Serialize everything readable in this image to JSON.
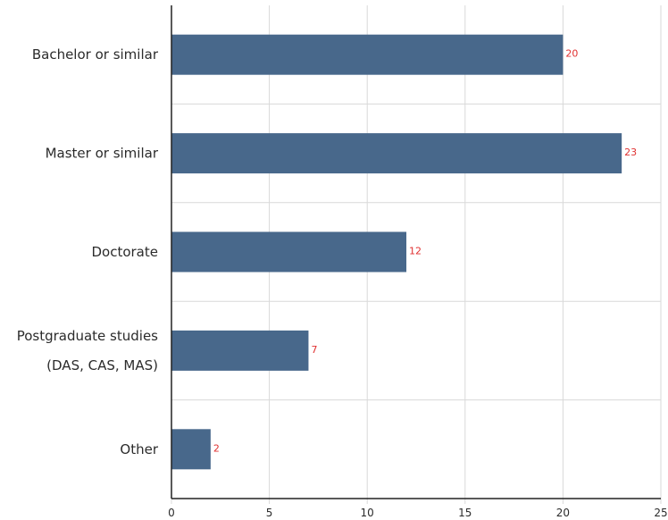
{
  "colors": {
    "bar": "#48688b",
    "data_label": "#e03030",
    "grid": "#d9d9d9",
    "axis": "#222222"
  },
  "chart_data": {
    "type": "bar",
    "orientation": "horizontal",
    "categories": [
      [
        "Bachelor or similar"
      ],
      [
        "Master or similar"
      ],
      [
        "Doctorate"
      ],
      [
        "Postgraduate studies",
        "(DAS, CAS, MAS)"
      ],
      [
        "Other"
      ]
    ],
    "values": [
      20,
      23,
      12,
      7,
      2
    ],
    "data_labels": [
      "20",
      "23",
      "12",
      "7",
      "2"
    ],
    "xlim": [
      0,
      25
    ],
    "x_ticks": [
      "0",
      "5",
      "10",
      "15",
      "20",
      "25"
    ],
    "grid": true,
    "legend": "none"
  }
}
